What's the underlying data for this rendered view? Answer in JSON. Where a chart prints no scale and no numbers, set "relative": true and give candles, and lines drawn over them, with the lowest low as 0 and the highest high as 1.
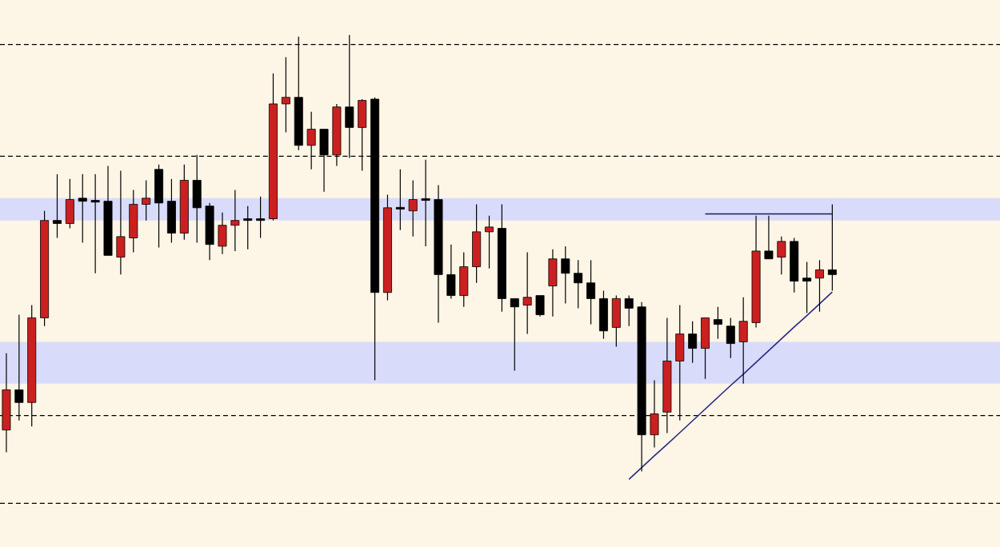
{
  "chart_data": {
    "type": "candlestick",
    "relative": true,
    "categories": [
      null,
      null,
      null,
      null,
      null,
      null,
      null,
      null,
      null,
      null,
      null,
      null,
      null,
      null,
      null,
      null,
      null,
      null,
      null,
      null,
      null,
      null,
      null,
      null,
      null,
      null,
      null,
      null,
      null,
      null,
      null,
      null,
      null,
      null,
      null,
      null,
      null,
      null,
      null,
      null,
      null,
      null,
      null,
      null,
      null,
      null,
      null,
      null,
      null,
      null,
      null,
      null,
      null,
      null,
      null,
      null,
      null,
      null,
      null,
      null,
      null,
      null,
      null,
      null,
      null,
      null
    ],
    "ohlc": [
      [
        0.095,
        0.271,
        0.044,
        0.187
      ],
      [
        0.187,
        0.359,
        0.117,
        0.158
      ],
      [
        0.158,
        0.381,
        0.103,
        0.352
      ],
      [
        0.352,
        0.597,
        0.333,
        0.575
      ],
      [
        0.575,
        0.681,
        0.535,
        0.568
      ],
      [
        0.568,
        0.67,
        0.557,
        0.623
      ],
      [
        0.626,
        0.681,
        0.524,
        0.619
      ],
      [
        0.619,
        0.681,
        0.454,
        0.617
      ],
      [
        0.619,
        0.7,
        0.495,
        0.495
      ],
      [
        0.491,
        0.689,
        0.451,
        0.538
      ],
      [
        0.535,
        0.645,
        0.502,
        0.612
      ],
      [
        0.612,
        0.667,
        0.575,
        0.626
      ],
      [
        0.692,
        0.703,
        0.513,
        0.615
      ],
      [
        0.619,
        0.67,
        0.524,
        0.546
      ],
      [
        0.546,
        0.703,
        0.531,
        0.667
      ],
      [
        0.667,
        0.725,
        0.524,
        0.604
      ],
      [
        0.608,
        0.615,
        0.484,
        0.52
      ],
      [
        0.516,
        0.593,
        0.498,
        0.564
      ],
      [
        0.564,
        0.645,
        0.505,
        0.575
      ],
      [
        0.579,
        0.608,
        0.509,
        0.575
      ],
      [
        0.579,
        0.63,
        0.535,
        0.575
      ],
      [
        0.579,
        0.912,
        0.575,
        0.842
      ],
      [
        0.842,
        0.949,
        0.777,
        0.857
      ],
      [
        0.857,
        0.996,
        0.736,
        0.747
      ],
      [
        0.747,
        0.824,
        0.692,
        0.784
      ],
      [
        0.784,
        0.784,
        0.641,
        0.725
      ],
      [
        0.725,
        0.842,
        0.7,
        0.835
      ],
      [
        0.835,
        1.0,
        0.718,
        0.788
      ],
      [
        0.788,
        0.853,
        0.689,
        0.85
      ],
      [
        0.853,
        0.857,
        0.209,
        0.41
      ],
      [
        0.41,
        0.634,
        0.392,
        0.604
      ],
      [
        0.604,
        0.692,
        0.553,
        0.601
      ],
      [
        0.597,
        0.667,
        0.538,
        0.623
      ],
      [
        0.623,
        0.714,
        0.516,
        0.621
      ],
      [
        0.623,
        0.656,
        0.341,
        0.451
      ],
      [
        0.451,
        0.52,
        0.396,
        0.403
      ],
      [
        0.403,
        0.502,
        0.377,
        0.469
      ],
      [
        0.469,
        0.612,
        0.432,
        0.549
      ],
      [
        0.549,
        0.586,
        0.465,
        0.56
      ],
      [
        0.557,
        0.612,
        0.366,
        0.396
      ],
      [
        0.396,
        0.396,
        0.231,
        0.377
      ],
      [
        0.381,
        0.502,
        0.315,
        0.399
      ],
      [
        0.403,
        0.403,
        0.355,
        0.359
      ],
      [
        0.425,
        0.509,
        0.355,
        0.487
      ],
      [
        0.487,
        0.516,
        0.385,
        0.454
      ],
      [
        0.454,
        0.484,
        0.374,
        0.432
      ],
      [
        0.432,
        0.484,
        0.337,
        0.396
      ],
      [
        0.396,
        0.414,
        0.304,
        0.322
      ],
      [
        0.33,
        0.403,
        0.286,
        0.396
      ],
      [
        0.396,
        0.403,
        0.333,
        0.374
      ],
      [
        0.377,
        0.388,
        0.0,
        0.084
      ],
      [
        0.084,
        0.209,
        0.055,
        0.132
      ],
      [
        0.136,
        0.352,
        0.088,
        0.253
      ],
      [
        0.253,
        0.381,
        0.117,
        0.315
      ],
      [
        0.315,
        0.344,
        0.249,
        0.282
      ],
      [
        0.282,
        0.352,
        0.212,
        0.352
      ],
      [
        0.348,
        0.377,
        0.304,
        0.337
      ],
      [
        0.333,
        0.352,
        0.26,
        0.293
      ],
      [
        0.297,
        0.399,
        0.201,
        0.344
      ],
      [
        0.341,
        0.586,
        0.33,
        0.505
      ],
      [
        0.505,
        0.586,
        0.487,
        0.487
      ],
      [
        0.491,
        0.538,
        0.451,
        0.527
      ],
      [
        0.527,
        0.535,
        0.41,
        0.436
      ],
      [
        0.443,
        0.48,
        0.363,
        0.436
      ],
      [
        0.443,
        0.484,
        0.366,
        0.462
      ],
      [
        0.462,
        0.612,
        0.414,
        0.451
      ]
    ],
    "colors": [
      "#cc2020",
      "#000000",
      "#cc2020",
      "#cc2020",
      "#000000",
      "#cc2020",
      "#000000",
      "#000000",
      "#000000",
      "#cc2020",
      "#cc2020",
      "#cc2020",
      "#000000",
      "#000000",
      "#cc2020",
      "#000000",
      "#000000",
      "#cc2020",
      "#cc2020",
      "#000000",
      "#000000",
      "#cc2020",
      "#cc2020",
      "#000000",
      "#cc2020",
      "#000000",
      "#cc2020",
      "#000000",
      "#cc2020",
      "#000000",
      "#cc2020",
      "#000000",
      "#cc2020",
      "#000000",
      "#000000",
      "#000000",
      "#cc2020",
      "#cc2020",
      "#cc2020",
      "#000000",
      "#000000",
      "#cc2020",
      "#000000",
      "#cc2020",
      "#000000",
      "#000000",
      "#000000",
      "#000000",
      "#cc2020",
      "#000000",
      "#000000",
      "#cc2020",
      "#cc2020",
      "#cc2020",
      "#000000",
      "#cc2020",
      "#000000",
      "#000000",
      "#cc2020",
      "#cc2020",
      "#000000",
      "#cc2020",
      "#000000",
      "#000000",
      "#cc2020",
      "#000000"
    ],
    "series": [
      {
        "type": "line",
        "color": "#2a2a80",
        "values": [
          null,
          null,
          null,
          null,
          null,
          null,
          null,
          null,
          null,
          null,
          null,
          null,
          null,
          null,
          null,
          null,
          null,
          null,
          null,
          null,
          null,
          null,
          null,
          null,
          null,
          null,
          null,
          null,
          null,
          null,
          null,
          null,
          null,
          null,
          null,
          null,
          null,
          null,
          null,
          null,
          null,
          null,
          null,
          null,
          null,
          null,
          null,
          null,
          null,
          -0.018,
          0.009,
          0.036,
          0.062,
          0.089,
          0.116,
          0.143,
          0.17,
          0.197,
          0.223,
          0.25,
          0.277,
          0.304,
          0.331,
          0.357,
          0.384,
          0.411
        ]
      },
      {
        "type": "line",
        "color": "#1a1a60",
        "values": [
          null,
          null,
          null,
          null,
          null,
          null,
          null,
          null,
          null,
          null,
          null,
          null,
          null,
          null,
          null,
          null,
          null,
          null,
          null,
          null,
          null,
          null,
          null,
          null,
          null,
          null,
          null,
          null,
          null,
          null,
          null,
          null,
          null,
          null,
          null,
          null,
          null,
          null,
          null,
          null,
          null,
          null,
          null,
          null,
          null,
          null,
          null,
          null,
          null,
          null,
          null,
          null,
          null,
          null,
          null,
          0.59,
          0.59,
          0.59,
          0.59,
          0.59,
          0.59,
          0.59,
          0.59,
          0.59,
          0.59,
          0.59
        ]
      }
    ],
    "bands": [
      {
        "axis": "y",
        "from": 0.575,
        "to": 0.626,
        "color": "#d8dcfa"
      },
      {
        "axis": "y",
        "from": 0.201,
        "to": 0.297,
        "color": "#d8dcfa"
      }
    ],
    "ref_lines": [
      {
        "axis": "y",
        "value": 0.978,
        "color": "#000000",
        "line_style": "dashed"
      },
      {
        "axis": "y",
        "value": 0.722,
        "color": "#000000",
        "line_style": "dashed"
      },
      {
        "axis": "y",
        "value": 0.128,
        "color": "#000000",
        "line_style": "dashed"
      },
      {
        "axis": "y",
        "value": -0.073,
        "color": "#000000",
        "line_style": "dashed"
      }
    ]
  }
}
